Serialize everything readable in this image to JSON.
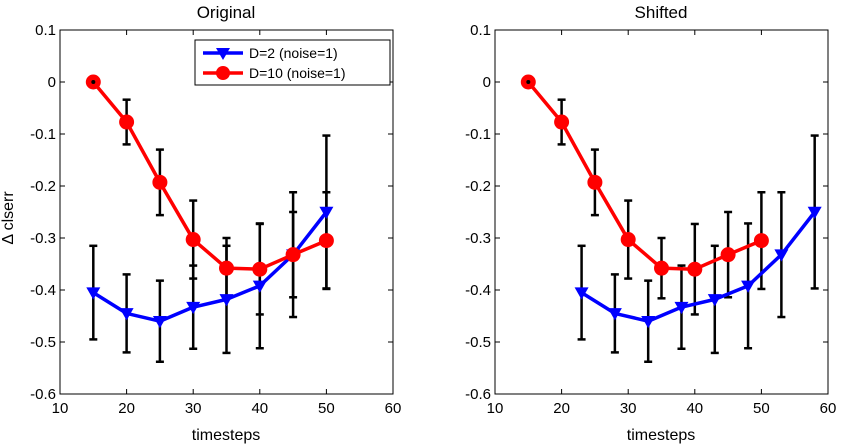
{
  "chart_data": [
    {
      "type": "line",
      "title": "Original",
      "xlabel": "timesteps",
      "ylabel": "Δ clserr",
      "xlim": [
        10,
        60
      ],
      "ylim": [
        -0.6,
        0.1
      ],
      "xticks": [
        10,
        20,
        30,
        40,
        50,
        60
      ],
      "yticks": [
        0.1,
        0,
        -0.1,
        -0.2,
        -0.3,
        -0.4,
        -0.5,
        -0.6
      ],
      "xtick_labels": [
        "10",
        "20",
        "30",
        "40",
        "50",
        "60"
      ],
      "ytick_labels": [
        "0.1",
        "0",
        "-0.1",
        "-0.2",
        "-0.3",
        "-0.4",
        "-0.5",
        "-0.6"
      ],
      "legend": "top-right",
      "series": [
        {
          "name": "D=2 (noise=1)",
          "color": "#0000ff",
          "marker": "triangle-down",
          "x": [
            15,
            20,
            25,
            30,
            35,
            40,
            45,
            50
          ],
          "y": [
            -0.405,
            -0.445,
            -0.46,
            -0.433,
            -0.418,
            -0.392,
            -0.332,
            -0.25
          ],
          "err": [
            0.09,
            0.075,
            0.078,
            0.08,
            0.103,
            0.12,
            0.12,
            0.147
          ]
        },
        {
          "name": "D=10 (noise=1)",
          "color": "#ff0000",
          "marker": "circle",
          "x": [
            15,
            20,
            25,
            30,
            35,
            40,
            45,
            50
          ],
          "y": [
            0.0,
            -0.077,
            -0.193,
            -0.303,
            -0.358,
            -0.36,
            -0.332,
            -0.305
          ],
          "err": [
            0.0,
            0.043,
            0.063,
            0.075,
            0.058,
            0.087,
            0.082,
            0.093
          ]
        }
      ]
    },
    {
      "type": "line",
      "title": "Shifted",
      "xlabel": "timesteps",
      "ylabel": "",
      "xlim": [
        10,
        60
      ],
      "ylim": [
        -0.6,
        0.1
      ],
      "xticks": [
        10,
        20,
        30,
        40,
        50,
        60
      ],
      "yticks": [
        0.1,
        0,
        -0.1,
        -0.2,
        -0.3,
        -0.4,
        -0.5,
        -0.6
      ],
      "xtick_labels": [
        "10",
        "20",
        "30",
        "40",
        "50",
        "60"
      ],
      "ytick_labels": [
        "0.1",
        "0",
        "-0.1",
        "-0.2",
        "-0.3",
        "-0.4",
        "-0.5",
        "-0.6"
      ],
      "series": [
        {
          "name": "D=2 (noise=1)",
          "color": "#0000ff",
          "marker": "triangle-down",
          "x": [
            23,
            28,
            33,
            38,
            43,
            48,
            53,
            58
          ],
          "y": [
            -0.405,
            -0.445,
            -0.46,
            -0.433,
            -0.418,
            -0.392,
            -0.332,
            -0.25
          ],
          "err": [
            0.09,
            0.075,
            0.078,
            0.08,
            0.103,
            0.12,
            0.12,
            0.147
          ]
        },
        {
          "name": "D=10 (noise=1)",
          "color": "#ff0000",
          "marker": "circle",
          "x": [
            15,
            20,
            25,
            30,
            35,
            40,
            45,
            50
          ],
          "y": [
            0.0,
            -0.077,
            -0.193,
            -0.303,
            -0.358,
            -0.36,
            -0.332,
            -0.305
          ],
          "err": [
            0.0,
            0.043,
            0.063,
            0.075,
            0.058,
            0.087,
            0.082,
            0.093
          ]
        }
      ]
    }
  ]
}
